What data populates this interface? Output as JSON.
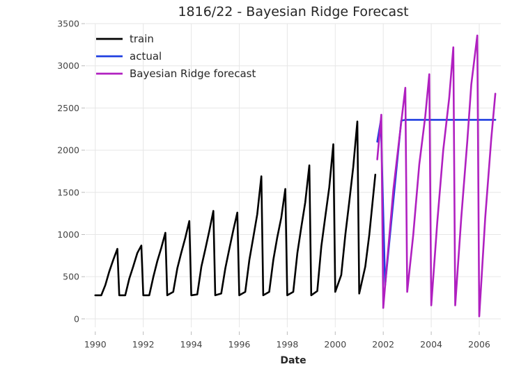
{
  "chart_data": {
    "type": "line",
    "title": "1816/22 - Bayesian Ridge Forecast",
    "xlabel": "Date",
    "ylabel": "",
    "xlim": [
      1989.6,
      2006.9
    ],
    "ylim": [
      -100,
      3500
    ],
    "xticks": [
      1990,
      1992,
      1994,
      1996,
      1998,
      2000,
      2002,
      2004,
      2006
    ],
    "xtick_labels": [
      "1990",
      "1992",
      "1994",
      "1996",
      "1998",
      "2000",
      "2002",
      "2004",
      "2006"
    ],
    "yticks": [
      0,
      500,
      1000,
      1500,
      2000,
      2500,
      3000,
      3500
    ],
    "ytick_labels": [
      "0",
      "500",
      "1000",
      "1500",
      "2000",
      "2500",
      "3000",
      "3500"
    ],
    "grid": true,
    "legend_position": "top-left",
    "series": [
      {
        "name": "train",
        "color": "#000000",
        "x": [
          1990.0,
          1990.25,
          1990.42,
          1990.58,
          1990.75,
          1990.92,
          1991.0,
          1991.25,
          1991.42,
          1991.58,
          1991.75,
          1991.92,
          1992.0,
          1992.25,
          1992.42,
          1992.58,
          1992.75,
          1992.92,
          1993.0,
          1993.25,
          1993.42,
          1993.58,
          1993.75,
          1993.92,
          1994.0,
          1994.25,
          1994.42,
          1994.58,
          1994.75,
          1994.92,
          1995.0,
          1995.25,
          1995.42,
          1995.58,
          1995.75,
          1995.92,
          1996.0,
          1996.25,
          1996.42,
          1996.58,
          1996.75,
          1996.92,
          1997.0,
          1997.25,
          1997.42,
          1997.58,
          1997.75,
          1997.92,
          1998.0,
          1998.25,
          1998.42,
          1998.58,
          1998.75,
          1998.92,
          1999.0,
          1999.25,
          1999.42,
          1999.58,
          1999.75,
          1999.92,
          2000.0,
          2000.25,
          2000.42,
          2000.58,
          2000.75,
          2000.92,
          2001.0,
          2001.25,
          2001.42,
          2001.67
        ],
        "y": [
          280,
          280,
          400,
          560,
          700,
          830,
          280,
          280,
          480,
          620,
          780,
          870,
          280,
          280,
          500,
          680,
          840,
          1020,
          280,
          320,
          600,
          780,
          960,
          1160,
          280,
          290,
          620,
          820,
          1040,
          1280,
          280,
          300,
          600,
          820,
          1050,
          1260,
          280,
          320,
          700,
          960,
          1240,
          1690,
          280,
          320,
          700,
          960,
          1200,
          1540,
          280,
          320,
          780,
          1080,
          1380,
          1820,
          280,
          330,
          860,
          1200,
          1560,
          2070,
          320,
          520,
          1000,
          1380,
          1800,
          2340,
          300,
          620,
          1000,
          1710
        ]
      },
      {
        "name": "actual",
        "color": "#1f3fe0",
        "x": [
          2001.75,
          2001.9,
          2002.08,
          2002.42,
          2002.75,
          2002.92,
          2003.0,
          2003.25,
          2003.42,
          2003.58,
          2003.75,
          2003.92,
          2004.0,
          2004.25,
          2004.42,
          2004.58,
          2004.75,
          2004.92,
          2005.0,
          2005.25,
          2005.42,
          2005.58,
          2005.75,
          2005.92,
          2006.0,
          2006.25,
          2006.42,
          2006.67
        ],
        "y": [
          2100,
          2350,
          400,
          1400,
          2350,
          2360,
          2360,
          2360,
          2360,
          2360,
          2360,
          2360,
          2360,
          2360,
          2360,
          2360,
          2360,
          2360,
          2360,
          2360,
          2360,
          2360,
          2360,
          2360,
          2360,
          2360,
          2360,
          2360
        ]
      },
      {
        "name": "Bayesian Ridge forecast",
        "color": "#b020c0",
        "x": [
          2001.75,
          2001.92,
          2002.0,
          2002.17,
          2002.42,
          2002.67,
          2002.92,
          2003.0,
          2003.25,
          2003.5,
          2003.75,
          2003.92,
          2004.0,
          2004.25,
          2004.5,
          2004.75,
          2004.92,
          2005.0,
          2005.25,
          2005.5,
          2005.67,
          2005.92,
          2006.0,
          2006.25,
          2006.5,
          2006.67
        ],
        "y": [
          1890,
          2420,
          130,
          700,
          1530,
          2140,
          2740,
          320,
          1000,
          1830,
          2400,
          2900,
          160,
          1140,
          2000,
          2620,
          3220,
          160,
          1200,
          2100,
          2780,
          3360,
          30,
          1200,
          2130,
          2670
        ]
      }
    ]
  }
}
